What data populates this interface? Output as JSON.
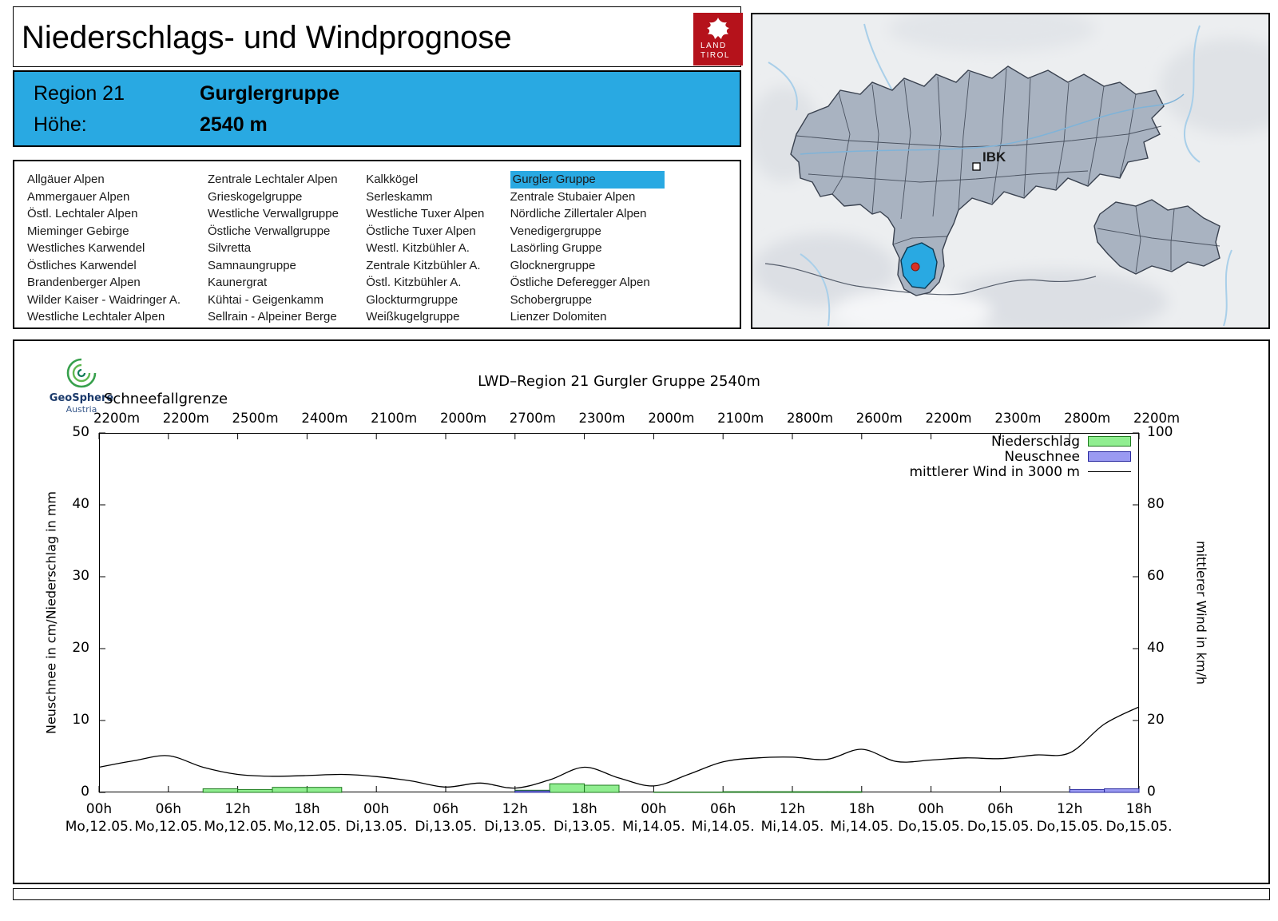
{
  "header": {
    "title": "Niederschlags- und Windprognose",
    "logo": {
      "line1": "LAND",
      "line2": "TIROL"
    }
  },
  "region_box": {
    "region_label": "Region 21",
    "region_name": "Gurglergruppe",
    "altitude_label": "Höhe:",
    "altitude_value": "2540 m"
  },
  "region_list": {
    "selected": "Gurgler Gruppe",
    "columns": [
      [
        "Allgäuer Alpen",
        "Ammergauer Alpen",
        "Östl. Lechtaler Alpen",
        "Mieminger Gebirge",
        "Westliches Karwendel",
        "Östliches Karwendel",
        "Brandenberger Alpen",
        "Wilder Kaiser - Waidringer A.",
        "Westliche Lechtaler Alpen"
      ],
      [
        "Zentrale Lechtaler Alpen",
        "Grieskogelgruppe",
        "Westliche Verwallgruppe",
        "Östliche Verwallgruppe",
        "Silvretta",
        "Samnaungruppe",
        "Kaunergrat",
        "Kühtai - Geigenkamm",
        "Sellrain - Alpeiner Berge"
      ],
      [
        "Kalkkögel",
        "Serleskamm",
        "Westliche Tuxer Alpen",
        "Östliche Tuxer Alpen",
        "Westl. Kitzbühler A.",
        "Zentrale Kitzbühler A.",
        "Östl. Kitzbühler A.",
        "Glockturmgruppe",
        "Weißkugelgruppe"
      ],
      [
        "Gurgler Gruppe",
        "Zentrale Stubaier Alpen",
        "Nördliche Zillertaler Alpen",
        "Venedigergruppe",
        "Lasörling Gruppe",
        "Glocknergruppe",
        "Östliche Deferegger Alpen",
        "Schobergruppe",
        "Lienzer Dolomiten"
      ]
    ]
  },
  "map": {
    "marker_label": "IBK"
  },
  "provider": {
    "name": "GeoSphere",
    "sub": "Austria"
  },
  "chart_data": {
    "type": "line+bar",
    "title": "LWD–Region 21 Gurgler Gruppe 2540m",
    "snowline_label": "Schneefallgrenze",
    "snowline_values_m": [
      2200,
      2200,
      2500,
      2400,
      2100,
      2000,
      2700,
      2300,
      2000,
      2100,
      2800,
      2600,
      2200,
      2300,
      2800,
      2200
    ],
    "ylabel_left": "Neuschnee in cm/Niederschlag in mm",
    "ylabel_right": "mittlerer Wind in km/h",
    "ylim_left": [
      0,
      50
    ],
    "ylim_right": [
      0,
      100
    ],
    "yticks_left": [
      0,
      10,
      20,
      30,
      40,
      50
    ],
    "yticks_right": [
      0,
      20,
      40,
      60,
      80,
      100
    ],
    "x_ticks": [
      {
        "hour": "00h",
        "date": "Mo,12.05."
      },
      {
        "hour": "06h",
        "date": "Mo,12.05."
      },
      {
        "hour": "12h",
        "date": "Mo,12.05."
      },
      {
        "hour": "18h",
        "date": "Mo,12.05."
      },
      {
        "hour": "00h",
        "date": "Di,13.05."
      },
      {
        "hour": "06h",
        "date": "Di,13.05."
      },
      {
        "hour": "12h",
        "date": "Di,13.05."
      },
      {
        "hour": "18h",
        "date": "Di,13.05."
      },
      {
        "hour": "00h",
        "date": "Mi,14.05."
      },
      {
        "hour": "06h",
        "date": "Mi,14.05."
      },
      {
        "hour": "12h",
        "date": "Mi,14.05."
      },
      {
        "hour": "18h",
        "date": "Mi,14.05."
      },
      {
        "hour": "00h",
        "date": "Do,15.05."
      },
      {
        "hour": "06h",
        "date": "Do,15.05."
      },
      {
        "hour": "12h",
        "date": "Do,15.05."
      },
      {
        "hour": "18h",
        "date": "Do,15.05."
      }
    ],
    "legend": [
      {
        "label": "Niederschlag",
        "swatch": "box",
        "fill": "#90ee90",
        "stroke": "#1f7a1f"
      },
      {
        "label": "Neuschnee",
        "swatch": "box",
        "fill": "#9a9af2",
        "stroke": "#2a2aa0"
      },
      {
        "label": "mittlerer Wind in 3000 m",
        "swatch": "line",
        "stroke": "#000000"
      }
    ],
    "series": {
      "wind_kmh": {
        "x_hours": [
          0,
          3,
          6,
          9,
          12,
          15,
          18,
          21,
          24,
          27,
          30,
          33,
          36,
          39,
          42,
          45,
          48,
          51,
          54,
          57,
          60,
          63,
          66,
          69,
          72,
          75,
          78,
          81,
          84,
          87,
          90
        ],
        "values": [
          7,
          8.8,
          10.2,
          7,
          5,
          4.5,
          4.7,
          5,
          4.4,
          3.2,
          1.5,
          2.6,
          1.2,
          3.5,
          7,
          4,
          1.8,
          5,
          8.5,
          9.6,
          9.8,
          9.2,
          12,
          8.6,
          9,
          9.6,
          9.4,
          10.4,
          11,
          19,
          23.8
        ]
      },
      "niederschlag_mm": {
        "interval_hours": 3,
        "values": [
          0,
          0,
          0,
          0.5,
          0.4,
          0.7,
          0.7,
          0,
          0,
          0,
          0,
          0,
          0.3,
          1.2,
          1.0,
          0,
          0.05,
          0.05,
          0.1,
          0.1,
          0.1,
          0.1,
          0,
          0,
          0,
          0,
          0,
          0,
          0.2,
          0.3
        ]
      },
      "neuschnee_cm": {
        "interval_hours": 3,
        "values": [
          0,
          0,
          0,
          0,
          0,
          0,
          0,
          0,
          0,
          0,
          0,
          0,
          0.2,
          0,
          0,
          0,
          0,
          0,
          0,
          0,
          0,
          0,
          0,
          0,
          0,
          0,
          0,
          0,
          0.4,
          0.5
        ]
      }
    }
  }
}
